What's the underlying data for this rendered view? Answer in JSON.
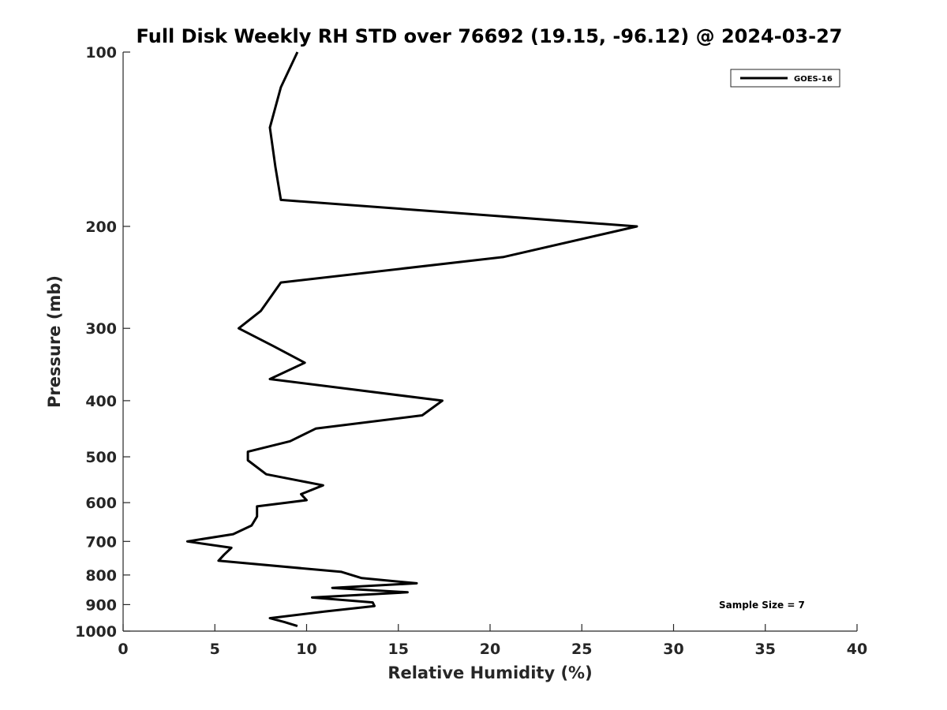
{
  "chart_data": {
    "type": "line",
    "title": "Full Disk Weekly RH STD over 76692 (19.15, -96.12) @ 2024-03-27",
    "xlabel": "Relative Humidity (%)",
    "ylabel": "Pressure (mb)",
    "xlim": [
      0,
      40
    ],
    "ylim": [
      100,
      1000
    ],
    "y_scale": "log",
    "y_inverted": true,
    "grid": false,
    "x_ticks": [
      "0",
      "5",
      "10",
      "15",
      "20",
      "25",
      "30",
      "35",
      "40"
    ],
    "y_ticks": [
      "100",
      "200",
      "300",
      "400",
      "500",
      "600",
      "700",
      "800",
      "900",
      "1000"
    ],
    "legend": {
      "position": "top-right",
      "entries": [
        "GOES-16"
      ]
    },
    "annotation": "Sample Size = 7",
    "line_color": "#000000",
    "series": [
      {
        "name": "GOES-16",
        "points": [
          [
            9.5,
            100
          ],
          [
            8.6,
            115
          ],
          [
            8.0,
            135
          ],
          [
            8.3,
            158
          ],
          [
            8.6,
            180
          ],
          [
            28.0,
            200
          ],
          [
            20.7,
            226
          ],
          [
            8.6,
            250
          ],
          [
            8.0,
            266
          ],
          [
            7.5,
            280
          ],
          [
            6.3,
            300
          ],
          [
            8.2,
            322
          ],
          [
            9.9,
            344
          ],
          [
            8.0,
            367
          ],
          [
            17.4,
            400
          ],
          [
            16.3,
            424
          ],
          [
            10.5,
            447
          ],
          [
            9.1,
            470
          ],
          [
            6.8,
            490
          ],
          [
            6.8,
            507
          ],
          [
            7.8,
            536
          ],
          [
            10.9,
            560
          ],
          [
            9.7,
            580
          ],
          [
            10.0,
            594
          ],
          [
            7.3,
            609
          ],
          [
            7.3,
            634
          ],
          [
            7.0,
            657
          ],
          [
            6.0,
            680
          ],
          [
            3.5,
            700
          ],
          [
            5.9,
            718
          ],
          [
            5.5,
            738
          ],
          [
            5.2,
            756
          ],
          [
            11.9,
            790
          ],
          [
            13.0,
            810
          ],
          [
            16.0,
            827
          ],
          [
            11.4,
            842
          ],
          [
            15.5,
            857
          ],
          [
            10.3,
            875
          ],
          [
            13.6,
            892
          ],
          [
            13.7,
            905
          ],
          [
            11.0,
            925
          ],
          [
            8.0,
            950
          ],
          [
            8.8,
            965
          ],
          [
            9.5,
            980
          ]
        ]
      }
    ]
  }
}
